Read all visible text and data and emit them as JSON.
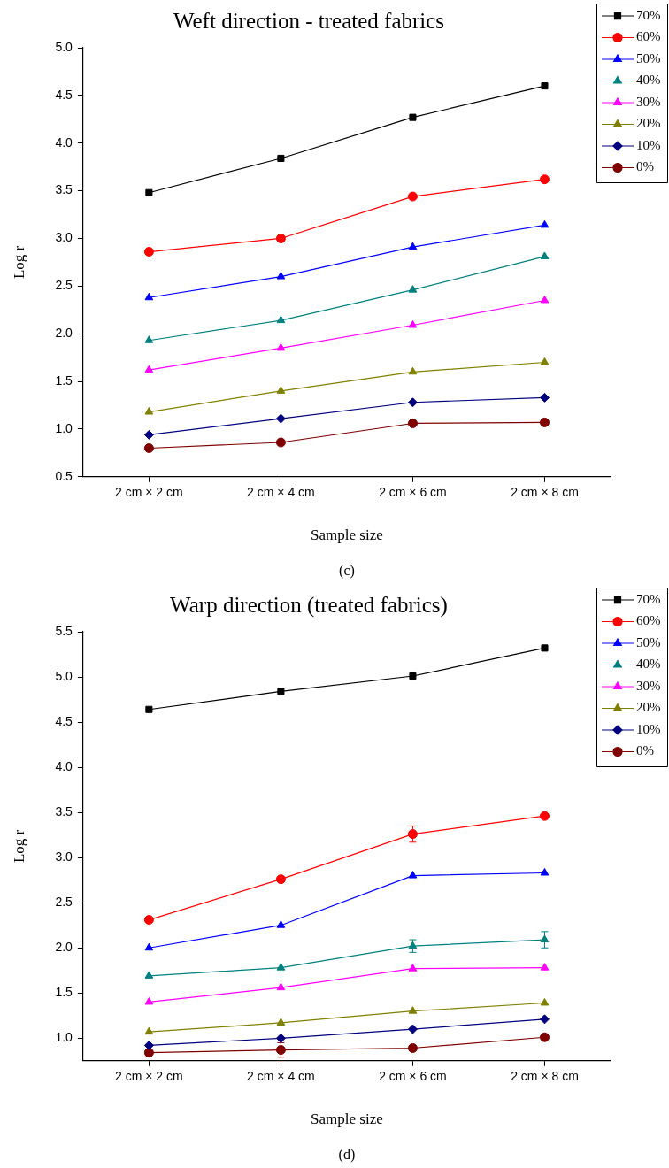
{
  "chart_data": [
    {
      "type": "line",
      "title": "Weft direction - treated fabrics",
      "xlabel": "Sample size",
      "ylabel": "Log r",
      "categories": [
        "2 cm × 2 cm",
        "2 cm × 4 cm",
        "2 cm × 6 cm",
        "2 cm × 8 cm"
      ],
      "ylim": [
        0.5,
        5.0
      ],
      "yticks": [
        {
          "value": 0.5,
          "label": "0.5"
        },
        {
          "value": 1,
          "label": "1.0"
        },
        {
          "value": 1.5,
          "label": "1.5"
        },
        {
          "value": 2,
          "label": "2.0"
        },
        {
          "value": 2.5,
          "label": "2.5"
        },
        {
          "value": 3,
          "label": "3.0"
        },
        {
          "value": 3.5,
          "label": "3.5"
        },
        {
          "value": 4,
          "label": "4.0"
        },
        {
          "value": 4.5,
          "label": "4.5"
        },
        {
          "value": 5,
          "label": "5.0"
        }
      ],
      "grid": false,
      "legend": "top right",
      "annotations": [
        "(c)"
      ],
      "series": [
        {
          "name": "70%",
          "color": "#000000",
          "marker": "square",
          "values": [
            3.48,
            3.84,
            4.27,
            4.6
          ]
        },
        {
          "name": "60%",
          "color": "#ff0000",
          "marker": "circle",
          "values": [
            2.86,
            3.0,
            3.44,
            3.62
          ]
        },
        {
          "name": "50%",
          "color": "#0000ff",
          "marker": "triangle",
          "values": [
            2.38,
            2.6,
            2.91,
            3.14
          ]
        },
        {
          "name": "40%",
          "color": "#008080",
          "marker": "triangle",
          "values": [
            1.93,
            2.14,
            2.46,
            2.81
          ]
        },
        {
          "name": "30%",
          "color": "#ff00ff",
          "marker": "triangle",
          "values": [
            1.62,
            1.85,
            2.09,
            2.35
          ]
        },
        {
          "name": "20%",
          "color": "#808000",
          "marker": "triangle",
          "values": [
            1.18,
            1.4,
            1.6,
            1.7
          ]
        },
        {
          "name": "10%",
          "color": "#000080",
          "marker": "diamond",
          "values": [
            0.94,
            1.11,
            1.28,
            1.33
          ]
        },
        {
          "name": "0%",
          "color": "#800000",
          "marker": "circle",
          "values": [
            0.8,
            0.86,
            1.06,
            1.07
          ]
        }
      ]
    },
    {
      "type": "line",
      "title": "Warp direction (treated fabrics)",
      "xlabel": "Sample size",
      "ylabel": "Log r",
      "categories": [
        "2 cm × 2 cm",
        "2 cm × 4 cm",
        "2 cm × 6 cm",
        "2 cm × 8 cm"
      ],
      "ylim": [
        0.75,
        5.5
      ],
      "yticks": [
        {
          "value": 1,
          "label": "1.0"
        },
        {
          "value": 1.5,
          "label": "1.5"
        },
        {
          "value": 2,
          "label": "2.0"
        },
        {
          "value": 2.5,
          "label": "2.5"
        },
        {
          "value": 3,
          "label": "3.0"
        },
        {
          "value": 3.5,
          "label": "3.5"
        },
        {
          "value": 4,
          "label": "4.0"
        },
        {
          "value": 4.5,
          "label": "4.5"
        },
        {
          "value": 5,
          "label": "5.0"
        },
        {
          "value": 5.5,
          "label": "5.5"
        }
      ],
      "grid": false,
      "legend": "top right",
      "annotations": [
        "(d)"
      ],
      "series": [
        {
          "name": "70%",
          "color": "#000000",
          "marker": "square",
          "values": [
            4.64,
            4.84,
            5.01,
            5.32
          ]
        },
        {
          "name": "60%",
          "color": "#ff0000",
          "marker": "circle",
          "values": [
            2.31,
            2.76,
            3.26,
            3.46
          ],
          "errors": [
            null,
            null,
            0.09,
            null
          ]
        },
        {
          "name": "50%",
          "color": "#0000ff",
          "marker": "triangle",
          "values": [
            2.0,
            2.25,
            2.8,
            2.83
          ]
        },
        {
          "name": "40%",
          "color": "#008080",
          "marker": "triangle",
          "values": [
            1.69,
            1.78,
            2.02,
            2.09
          ],
          "errors": [
            null,
            null,
            0.07,
            0.09
          ]
        },
        {
          "name": "30%",
          "color": "#ff00ff",
          "marker": "triangle",
          "values": [
            1.4,
            1.56,
            1.77,
            1.78
          ]
        },
        {
          "name": "20%",
          "color": "#808000",
          "marker": "triangle",
          "values": [
            1.07,
            1.17,
            1.3,
            1.39
          ]
        },
        {
          "name": "10%",
          "color": "#000080",
          "marker": "diamond",
          "values": [
            0.92,
            1.0,
            1.1,
            1.21
          ]
        },
        {
          "name": "0%",
          "color": "#800000",
          "marker": "circle",
          "values": [
            0.84,
            0.87,
            0.89,
            1.01
          ],
          "errors": [
            null,
            0.08,
            null,
            null
          ]
        }
      ]
    }
  ]
}
